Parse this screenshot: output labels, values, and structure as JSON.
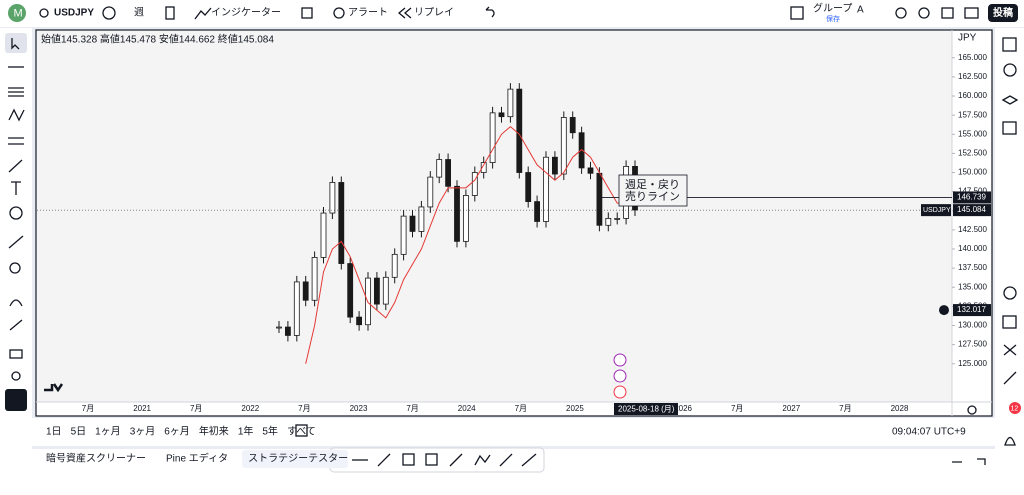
{
  "toolbar": {
    "symbol": "USDJPY",
    "interval": "週",
    "indicators": "インジケーター",
    "alert": "アラート",
    "replay": "リプレイ",
    "group": "グループ",
    "group_id": "A",
    "save": "保存",
    "post": "投稿"
  },
  "ohlc": "始値145.328 高値145.478 安値144.662 終値145.084",
  "chart_data": {
    "type": "candlestick",
    "currency": "JPY",
    "closes": [
      129.8,
      128.7,
      135.7,
      133.3,
      138.9,
      144.7,
      148.7,
      138.1,
      131.1,
      130.1,
      136.2,
      132.8,
      136.3,
      139.3,
      144.3,
      142.3,
      145.5,
      149.4,
      151.7,
      148.2,
      141.0,
      147.0,
      150.0,
      151.3,
      157.8,
      157.3,
      160.9,
      150.0,
      146.2,
      143.6,
      152.0,
      149.8,
      157.2,
      155.2,
      150.6,
      149.9,
      143.1,
      144.0,
      144.0,
      150.8,
      145.1
    ],
    "ma": [
      null,
      null,
      null,
      125,
      130,
      137,
      140,
      141,
      139,
      136,
      133,
      132,
      131,
      133,
      136,
      138,
      140,
      143,
      146,
      148,
      148,
      148,
      149,
      151,
      153,
      155,
      156,
      155,
      153,
      151,
      150,
      149,
      150,
      152,
      153,
      152,
      150,
      148,
      146,
      146,
      146
    ],
    "up_color": "#1a1a1a",
    "down_color": "#1a1a1a",
    "ma_color": "#e53935",
    "ylim": [
      120,
      168.5
    ],
    "yticks": [
      {
        "value": 125,
        "label": "125.000"
      },
      {
        "value": 127.5,
        "label": "127.500"
      },
      {
        "value": 130,
        "label": "130.000"
      },
      {
        "value": 132.5,
        "label": "132.500"
      },
      {
        "value": 135,
        "label": "135.000"
      },
      {
        "value": 137.5,
        "label": "137.500"
      },
      {
        "value": 140,
        "label": "140.000"
      },
      {
        "value": 142.5,
        "label": "142.500"
      },
      {
        "value": 145,
        "label": "145.000"
      },
      {
        "value": 147.5,
        "label": "147.500"
      },
      {
        "value": 150,
        "label": "150.000"
      },
      {
        "value": 152.5,
        "label": "152.500"
      },
      {
        "value": 155,
        "label": "155.000"
      },
      {
        "value": 157.5,
        "label": "157.500"
      },
      {
        "value": 160,
        "label": "160.000"
      },
      {
        "value": 162.5,
        "label": "162.500"
      },
      {
        "value": 165,
        "label": "165.000"
      }
    ],
    "x_labels": [
      "7月",
      "2021",
      "7月",
      "2022",
      "7月",
      "2023",
      "7月",
      "2024",
      "7月",
      "2025",
      "",
      "2026",
      "7月",
      "2027",
      "7月",
      "2028"
    ],
    "crosshair_date": "2025-08-18 (月)",
    "hline": {
      "value": 146.739,
      "label": "146.739"
    },
    "last": {
      "value": 145.084,
      "label": "145.084",
      "name": "USDJPY"
    },
    "crosshair": {
      "value": 132.017,
      "label": "132.017"
    },
    "annotation": [
      "週足・戻り",
      "売りライン"
    ]
  },
  "ranges": [
    "1日",
    "5日",
    "1ヶ月",
    "3ヶ月",
    "6ヶ月",
    "年初来",
    "1年",
    "5年",
    "すべて"
  ],
  "clock": "09:04:07 UTC+9",
  "tabs": [
    "暗号資産スクリーナー",
    "Pine エディタ",
    "ストラテジーテスター"
  ]
}
